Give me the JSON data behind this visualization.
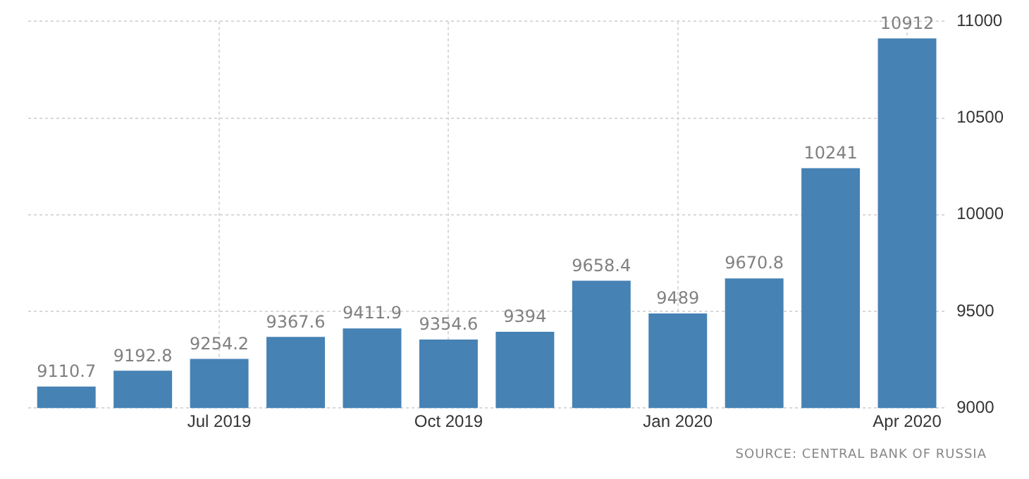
{
  "chart_data": {
    "type": "bar",
    "categories": [
      null,
      null,
      "Jul 2019",
      null,
      null,
      "Oct 2019",
      null,
      null,
      "Jan 2020",
      null,
      null,
      "Apr 2020"
    ],
    "values": [
      9110.7,
      9192.8,
      9254.2,
      9367.6,
      9411.9,
      9354.6,
      9394,
      9658.4,
      9489,
      9670.8,
      10241,
      10912
    ],
    "color": "#4682b4",
    "ylim": [
      9000,
      11000
    ],
    "yticks": [
      9000,
      9500,
      10000,
      10500,
      11000
    ],
    "grid": true,
    "data_labels": true,
    "annotations": [
      "SOURCE: CENTRAL BANK OF RUSSIA"
    ]
  }
}
